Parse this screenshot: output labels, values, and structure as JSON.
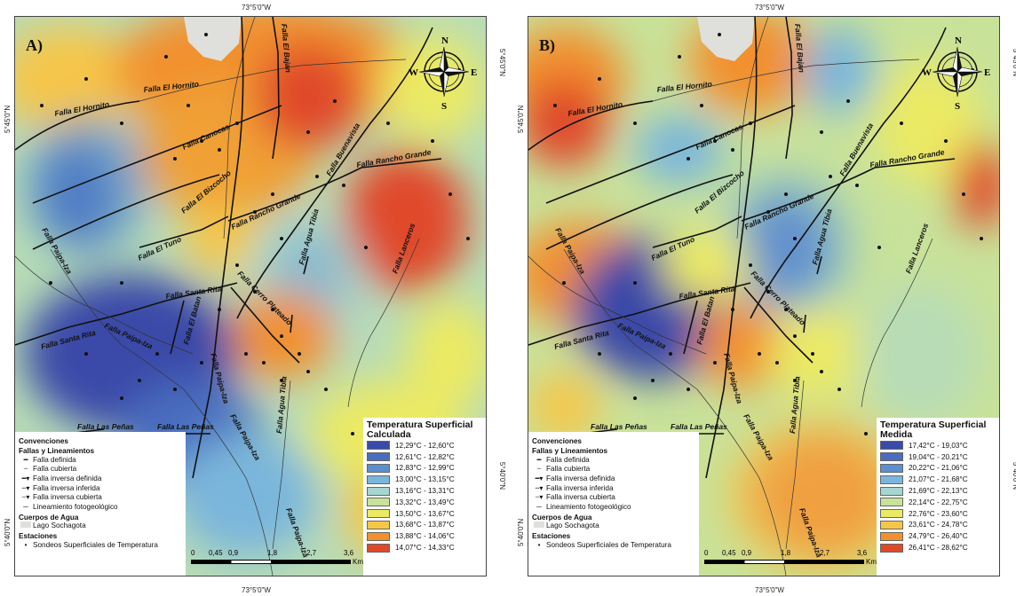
{
  "coords": {
    "top": "73°5'0\"W",
    "bottom": "73°5'0\"W",
    "left_upper": "5°45'0\"N",
    "left_lower": "5°40'0\"N",
    "right_upper": "5°45'0\"N",
    "right_lower": "5°40'0\"N"
  },
  "compass": {
    "n": "N",
    "s": "S",
    "e": "E",
    "w": "W"
  },
  "fault_labels": {
    "hornito": "Falla El Hornito",
    "bajan": "Falla El Bajan",
    "canocas": "Falla Canocas",
    "buenavista": "Falla Buenavista",
    "rancho_grande": "Falla Rancho Grande",
    "bizcocho": "Falla El Bizcocho",
    "paipa_iza": "Falla Paipa-Iza",
    "tuno": "Falla El Tuno",
    "agua_tibia": "Falla Agua Tibia",
    "lanceros": "Falla Lanceros",
    "santa_rita": "Falla Santa Rita",
    "cerro_plateado": "Falla Cerro Plateado",
    "batan": "Falla El Batan",
    "las_penas": "Falla Las Peñas"
  },
  "convenciones": {
    "title": "Convenciones",
    "fallas_title": "Fallas y Lineamientos",
    "items": [
      "Falla definida",
      "Falla cubierta",
      "Falla inversa definida",
      "Falla inversa inferida",
      "Falla inversa cubierta",
      "Lineamiento fotogeológico"
    ],
    "agua_title": "Cuerpos de Agua",
    "lago": "Lago Sochagota",
    "estaciones_title": "Estaciones",
    "sondeos": "Sondeos Superficiales de Temperatura"
  },
  "scale": {
    "ticks": [
      "0",
      "0,45",
      "0,9",
      "1,8",
      "2,7",
      "3,6"
    ],
    "unit": "Kms"
  },
  "panels": [
    {
      "label": "A)",
      "legend_title": "Temperatura Superficial Calculada",
      "ranges": [
        {
          "label": "12,29°C - 12,60°C",
          "color": "#3a4aa8"
        },
        {
          "label": "12,61°C - 12,82°C",
          "color": "#4a6dc0"
        },
        {
          "label": "12,83°C - 12,99°C",
          "color": "#5a90d0"
        },
        {
          "label": "13,00°C - 13,15°C",
          "color": "#7ab6dc"
        },
        {
          "label": "13,16°C - 13,31°C",
          "color": "#a6d6d0"
        },
        {
          "label": "13,32°C - 13,49°C",
          "color": "#c8e29a"
        },
        {
          "label": "13,50°C - 13,67°C",
          "color": "#ecea64"
        },
        {
          "label": "13,68°C - 13,87°C",
          "color": "#f6c648"
        },
        {
          "label": "13,88°C - 14,06°C",
          "color": "#f2902e"
        },
        {
          "label": "14,07°C - 14,33°C",
          "color": "#e0482a"
        }
      ]
    },
    {
      "label": "B)",
      "legend_title": "Temperatura Superficial Medida",
      "ranges": [
        {
          "label": "17,42°C - 19,03°C",
          "color": "#3a4aa8"
        },
        {
          "label": "19,04°C - 20,21°C",
          "color": "#4a6dc0"
        },
        {
          "label": "20,22°C - 21,06°C",
          "color": "#5a90d0"
        },
        {
          "label": "21,07°C - 21,68°C",
          "color": "#7ab6dc"
        },
        {
          "label": "21,69°C - 22,13°C",
          "color": "#a6d6d0"
        },
        {
          "label": "22,14°C - 22,75°C",
          "color": "#c8e29a"
        },
        {
          "label": "22,76°C - 23,60°C",
          "color": "#ecea64"
        },
        {
          "label": "23,61°C - 24,78°C",
          "color": "#f6c648"
        },
        {
          "label": "24,79°C - 26,40°C",
          "color": "#f2902e"
        },
        {
          "label": "26,41°C - 28,62°C",
          "color": "#e0482a"
        }
      ]
    }
  ]
}
